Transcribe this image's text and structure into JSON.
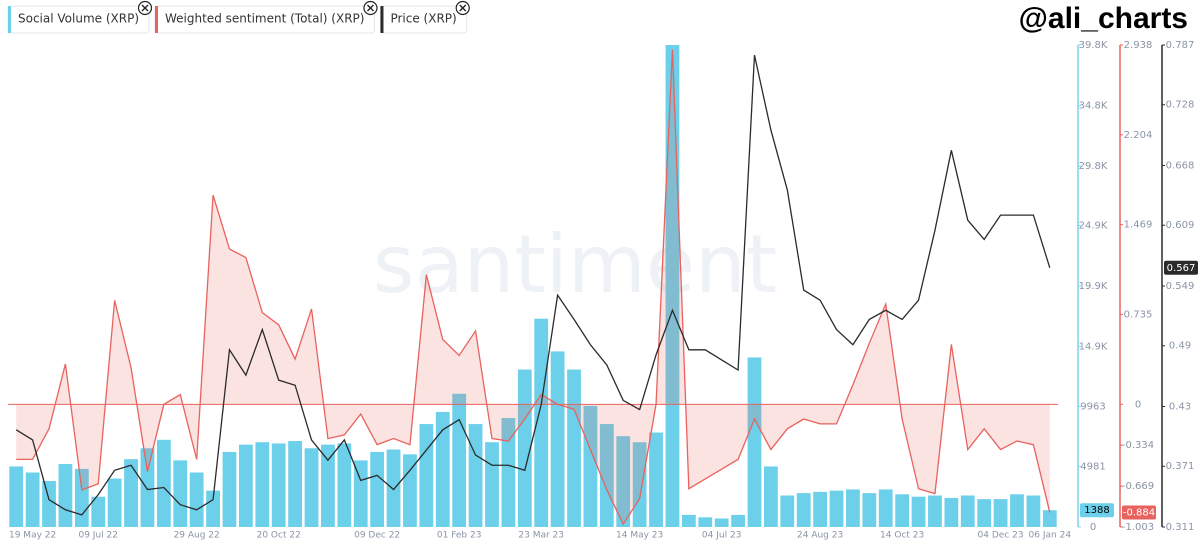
{
  "chart_data": {
    "type": "combo",
    "handle": "@ali_charts",
    "watermark": "santiment",
    "categories": [
      null,
      "19 May 22",
      null,
      null,
      null,
      "09 Jul 22",
      null,
      null,
      null,
      null,
      null,
      "29 Aug 22",
      null,
      null,
      null,
      null,
      "20 Oct 22",
      null,
      null,
      null,
      null,
      null,
      "09 Dec 22",
      null,
      null,
      null,
      null,
      "01 Feb 23",
      null,
      null,
      null,
      null,
      "23 Mar 23",
      null,
      null,
      null,
      null,
      null,
      "14 May 23",
      null,
      null,
      null,
      null,
      "04 Jul 23",
      null,
      null,
      null,
      null,
      null,
      "24 Aug 23",
      null,
      null,
      null,
      null,
      "14 Oct 23",
      null,
      null,
      null,
      null,
      null,
      "04 Dec 23",
      null,
      null,
      "06 Jan 24"
    ],
    "series": [
      {
        "name": "Social Volume (XRP)",
        "type": "bar",
        "axis": "y",
        "color": "#6cd0ea",
        "last_value": 1388,
        "values": [
          5000,
          4500,
          3800,
          5200,
          4800,
          2500,
          4000,
          5600,
          6500,
          7200,
          5500,
          4500,
          3000,
          6200,
          6800,
          7000,
          6900,
          7100,
          6500,
          6800,
          6900,
          5500,
          6200,
          6400,
          6000,
          8500,
          9500,
          11000,
          8500,
          7000,
          9000,
          13000,
          17200,
          14500,
          13000,
          10000,
          8500,
          7500,
          7000,
          7800,
          39800,
          1000,
          800,
          700,
          1000,
          14000,
          5000,
          2600,
          2800,
          2900,
          3000,
          3100,
          2800,
          3100,
          2700,
          2500,
          2600,
          2400,
          2600,
          2300,
          2300,
          2700,
          2600,
          1388
        ]
      },
      {
        "name": "Weighted sentiment (Total) (XRP)",
        "type": "area",
        "axis": "y2",
        "color": "#e8625e",
        "last_value": -0.884,
        "values": [
          -0.45,
          -0.45,
          -0.2,
          0.33,
          -0.7,
          -0.65,
          0.85,
          0.3,
          -0.55,
          0.0,
          0.08,
          -0.45,
          1.71,
          1.27,
          1.2,
          0.75,
          0.65,
          0.37,
          0.78,
          -0.28,
          -0.25,
          -0.08,
          -0.33,
          -0.28,
          -0.33,
          1.06,
          0.53,
          0.4,
          0.6,
          -0.28,
          -0.3,
          -0.12,
          0.08,
          0.0,
          -0.04,
          -0.37,
          -0.7,
          -0.98,
          -0.77,
          0.0,
          2.9,
          -0.69,
          -0.61,
          -0.53,
          -0.45,
          -0.12,
          -0.37,
          -0.2,
          -0.12,
          -0.16,
          -0.16,
          0.16,
          0.5,
          0.82,
          -0.12,
          -0.69,
          -0.73,
          0.49,
          -0.37,
          -0.2,
          -0.37,
          -0.3,
          -0.33,
          -0.884
        ]
      },
      {
        "name": "Price (XRP)",
        "type": "line",
        "axis": "y3",
        "color": "#2b2b2b",
        "last_value": 0.567,
        "values": [
          0.407,
          0.397,
          0.338,
          0.328,
          0.323,
          0.343,
          0.367,
          0.372,
          0.348,
          0.35,
          0.333,
          0.328,
          0.338,
          0.486,
          0.461,
          0.506,
          0.456,
          0.451,
          0.397,
          0.377,
          0.397,
          0.357,
          0.362,
          0.348,
          0.367,
          0.387,
          0.407,
          0.417,
          0.382,
          0.372,
          0.372,
          0.367,
          0.432,
          0.54,
          0.516,
          0.491,
          0.471,
          0.436,
          0.427,
          0.481,
          0.525,
          0.486,
          0.486,
          0.476,
          0.466,
          0.777,
          0.703,
          0.644,
          0.545,
          0.535,
          0.506,
          0.491,
          0.516,
          0.525,
          0.516,
          0.535,
          0.604,
          0.683,
          0.614,
          0.595,
          0.619,
          0.619,
          0.619,
          0.567
        ]
      }
    ],
    "ylim": [
      0,
      39800
    ],
    "yticks": [
      0,
      4981,
      9963,
      {
        "value": 14900,
        "label": "14.9K"
      },
      {
        "value": 19900,
        "label": "19.9K"
      },
      {
        "value": 24900,
        "label": "24.9K"
      },
      {
        "value": 29800,
        "label": "29.8K"
      },
      {
        "value": 34800,
        "label": "34.8K"
      },
      {
        "value": 39800,
        "label": "39.8K"
      }
    ],
    "y2lim": [
      -1.003,
      2.938
    ],
    "y2ticks": [
      -1.003,
      -0.669,
      -0.334,
      0,
      0.735,
      1.469,
      2.204,
      2.938
    ],
    "y3lim": [
      0.311,
      0.787
    ],
    "y3ticks": [
      0.311,
      0.371,
      0.43,
      0.49,
      0.549,
      0.609,
      0.668,
      0.728,
      0.787
    ]
  }
}
